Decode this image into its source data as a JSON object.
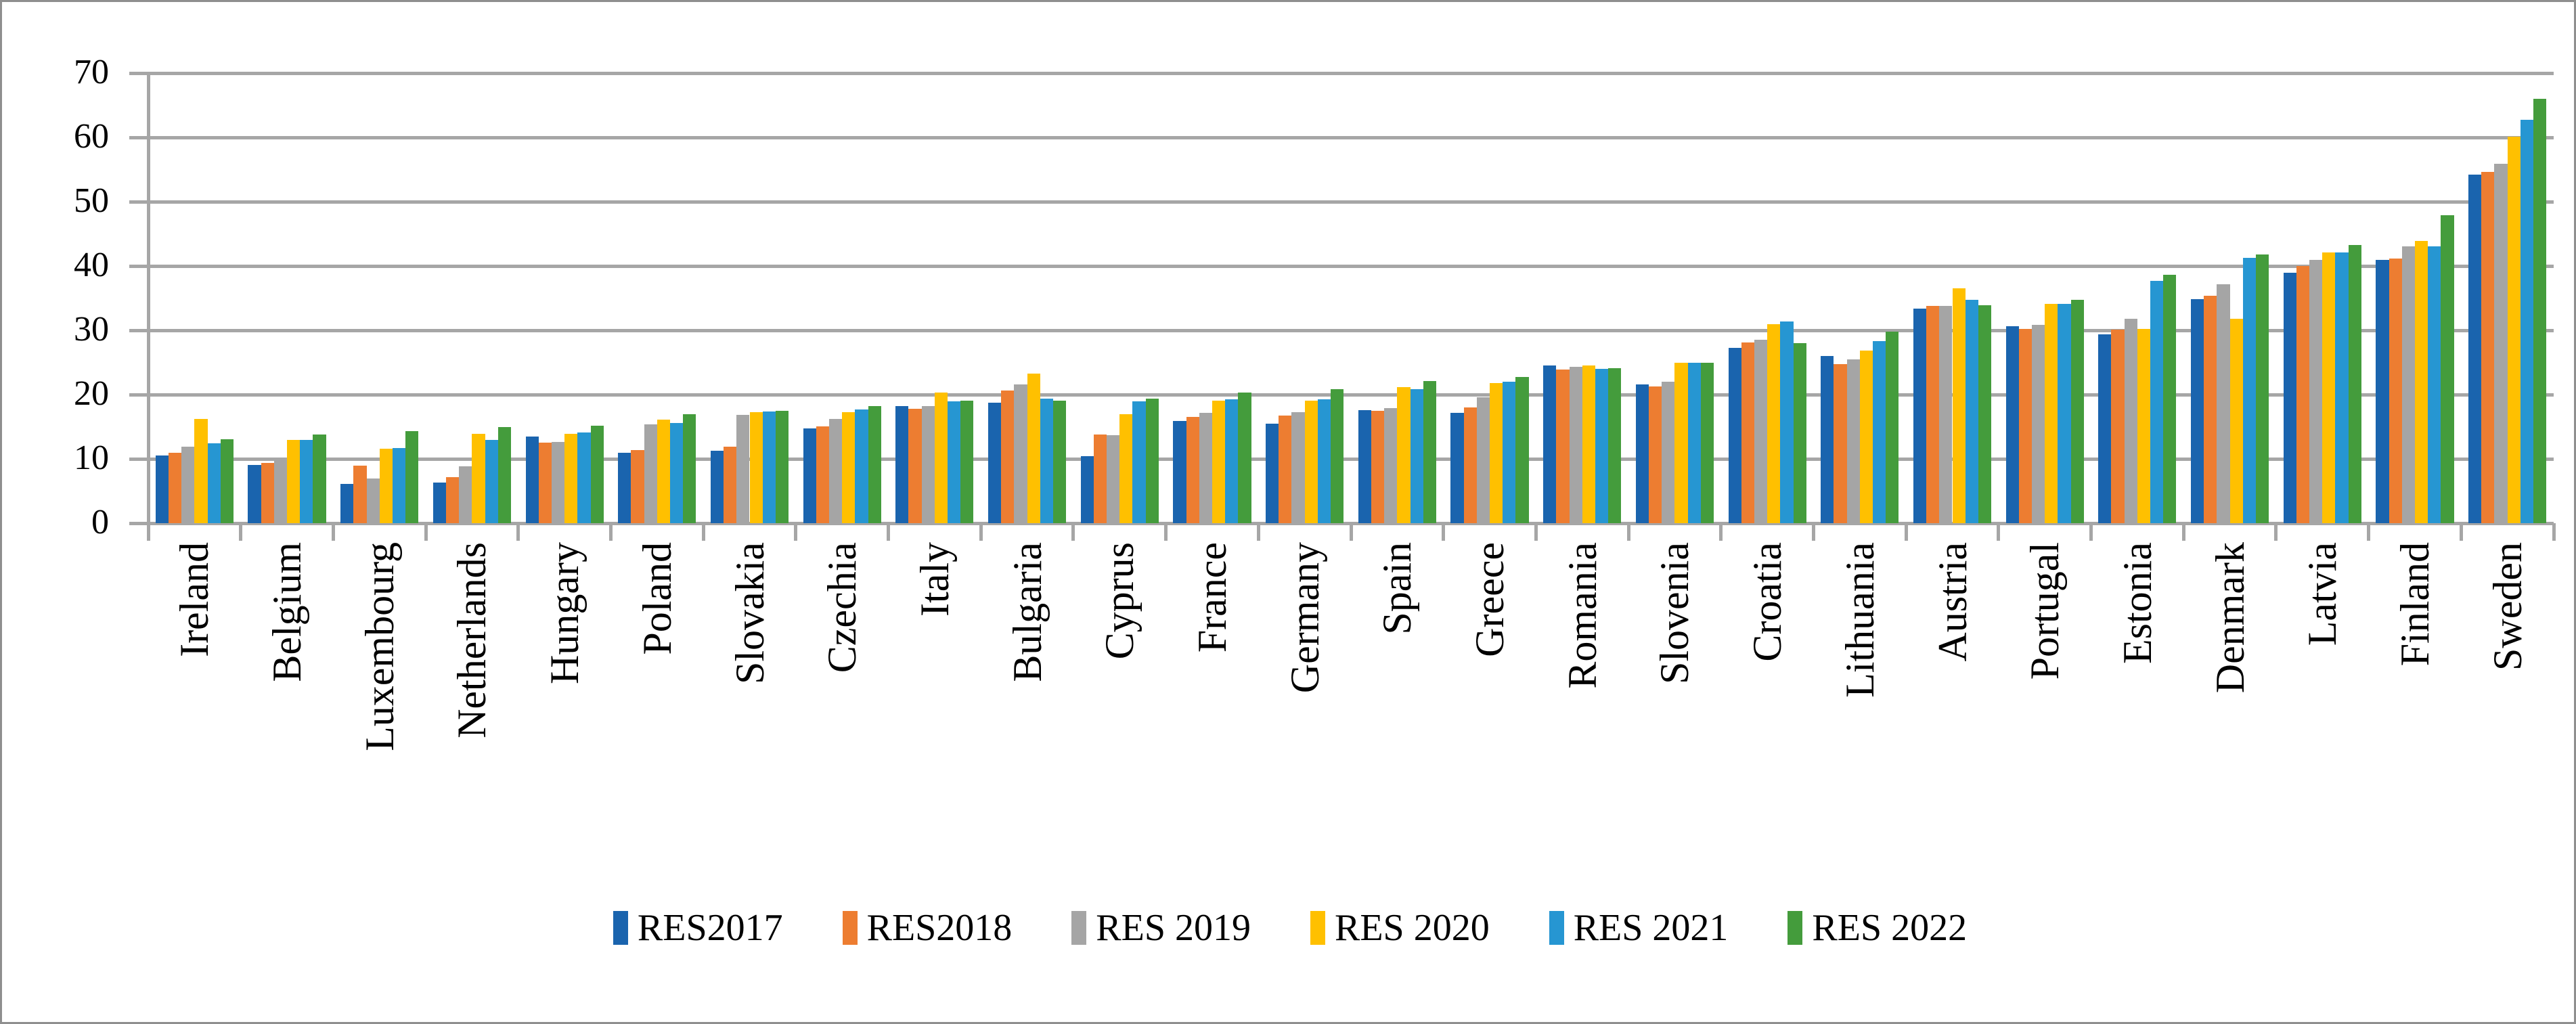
{
  "chart_data": {
    "type": "bar",
    "title": "",
    "xlabel": "",
    "ylabel": "",
    "ylim": [
      0,
      70
    ],
    "yticks": [
      0,
      10,
      20,
      30,
      40,
      50,
      60,
      70
    ],
    "grid": true,
    "legend_position": "bottom",
    "gridline_color": "#a6a6a6",
    "categories": [
      "Ireland",
      "Belgium",
      "Luxembourg",
      "Netherlands",
      "Hungary",
      "Poland",
      "Slovakia",
      "Czechia",
      "Italy",
      "Bulgaria",
      "Cyprus",
      "France",
      "Germany",
      "Spain",
      "Greece",
      "Romania",
      "Slovenia",
      "Croatia",
      "Lithuania",
      "Austria",
      "Portugal",
      "Estonia",
      "Denmark",
      "Latvia",
      "Finland",
      "Sweden"
    ],
    "series": [
      {
        "name": "RES2017",
        "color": "#1a64ae",
        "values": [
          10.5,
          9.1,
          6.1,
          6.3,
          13.5,
          11.0,
          11.3,
          14.7,
          18.2,
          18.7,
          10.4,
          15.9,
          15.5,
          17.6,
          17.2,
          24.5,
          21.6,
          27.3,
          26.0,
          33.4,
          30.6,
          29.4,
          34.8,
          39.0,
          41.0,
          54.2
        ]
      },
      {
        "name": "RES2018",
        "color": "#ed7d31",
        "values": [
          10.9,
          9.4,
          8.9,
          7.2,
          12.5,
          11.4,
          11.9,
          15.1,
          17.8,
          20.6,
          13.8,
          16.5,
          16.7,
          17.5,
          18.0,
          23.9,
          21.3,
          28.1,
          24.7,
          33.8,
          30.2,
          30.1,
          35.4,
          40.0,
          41.2,
          54.6
        ]
      },
      {
        "name": "RES 2019",
        "color": "#a5a5a5",
        "values": [
          11.9,
          9.9,
          7.0,
          8.8,
          12.6,
          15.4,
          16.8,
          16.2,
          18.2,
          21.6,
          13.7,
          17.2,
          17.3,
          17.9,
          19.6,
          24.3,
          22.0,
          28.5,
          25.5,
          33.8,
          30.8,
          31.8,
          37.2,
          41.0,
          43.1,
          55.9
        ]
      },
      {
        "name": "RES 2020",
        "color": "#ffc000",
        "values": [
          16.2,
          13.0,
          11.6,
          13.9,
          13.9,
          16.1,
          17.3,
          17.3,
          20.3,
          23.3,
          16.9,
          19.1,
          19.1,
          21.2,
          21.8,
          24.5,
          25.0,
          31.0,
          26.8,
          36.5,
          34.1,
          30.2,
          31.8,
          42.1,
          43.9,
          60.1
        ]
      },
      {
        "name": "RES 2021",
        "color": "#2696d2",
        "values": [
          12.4,
          13.0,
          11.7,
          12.9,
          14.1,
          15.6,
          17.4,
          17.7,
          19.0,
          19.4,
          19.0,
          19.3,
          19.3,
          20.8,
          22.0,
          24.0,
          25.0,
          31.4,
          28.3,
          34.7,
          34.1,
          37.7,
          41.3,
          42.1,
          43.1,
          62.7
        ]
      },
      {
        "name": "RES 2022",
        "color": "#449c3c",
        "values": [
          13.1,
          13.8,
          14.3,
          15.0,
          15.2,
          16.9,
          17.5,
          18.2,
          19.1,
          19.1,
          19.4,
          20.3,
          20.8,
          22.1,
          22.7,
          24.1,
          25.0,
          28.0,
          29.8,
          33.9,
          34.7,
          38.6,
          41.8,
          43.3,
          47.9,
          66.0
        ]
      }
    ]
  }
}
